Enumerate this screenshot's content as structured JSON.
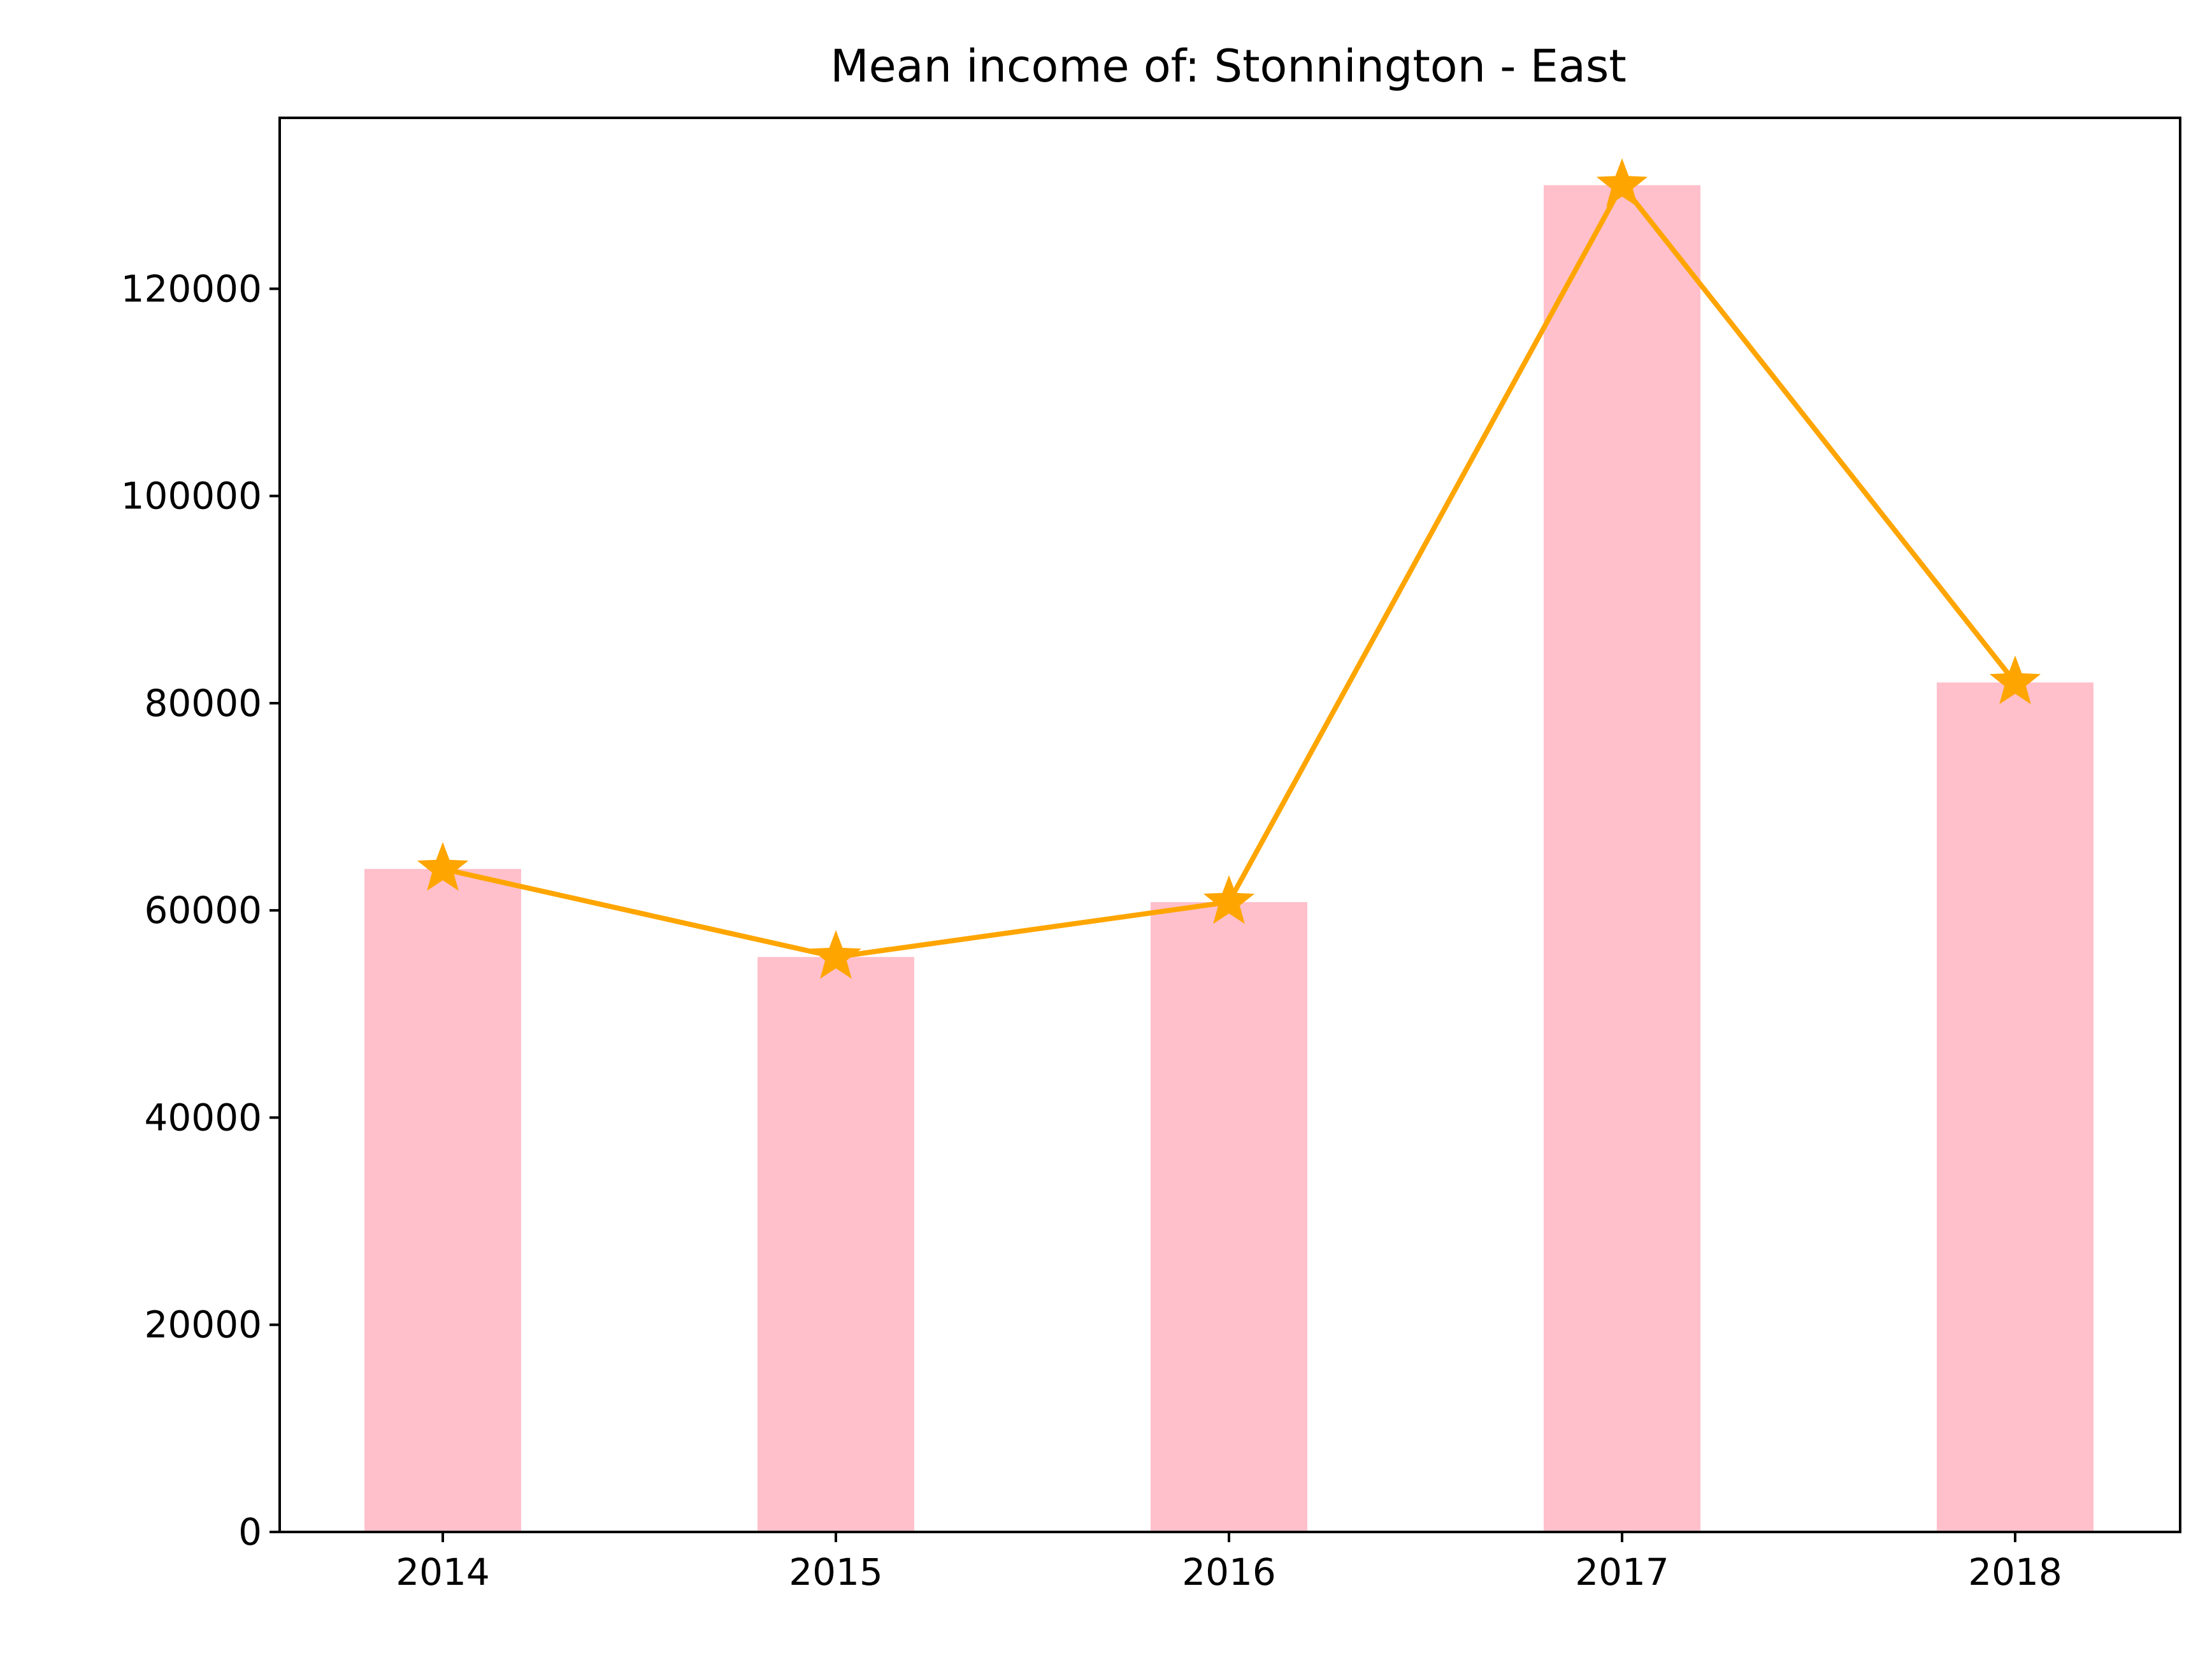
{
  "chart_data": {
    "type": "bar",
    "title": "Mean income of: Stonnington - East",
    "xlabel": "",
    "ylabel": "",
    "categories": [
      "2014",
      "2015",
      "2016",
      "2017",
      "2018"
    ],
    "series": [
      {
        "kind": "bar",
        "values": [
          64000,
          55500,
          60800,
          130000,
          82000
        ]
      },
      {
        "kind": "line",
        "marker": "star",
        "values": [
          64000,
          55500,
          60800,
          130000,
          82000
        ]
      }
    ],
    "ylim": [
      0,
      136500
    ],
    "yticks": [
      0,
      20000,
      40000,
      60000,
      80000,
      100000,
      120000
    ],
    "ytick_labels": [
      "0",
      "20000",
      "40000",
      "60000",
      "80000",
      "100000",
      "120000"
    ],
    "grid": false,
    "legend": "none",
    "colors": {
      "bar": "#ffc0cb",
      "line": "#ffa500",
      "axes": "#000000"
    }
  }
}
